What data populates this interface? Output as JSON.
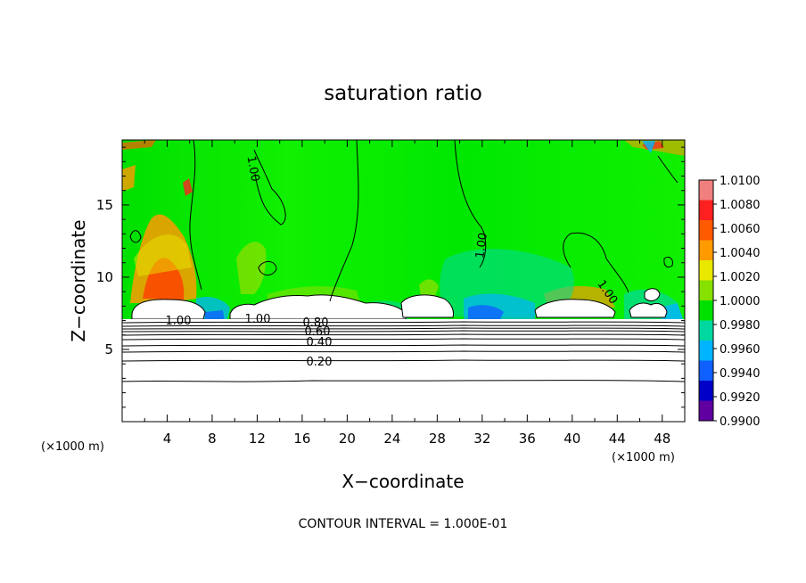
{
  "chart_data": {
    "type": "heatmap",
    "title": "saturation ratio",
    "xlabel": "X−coordinate",
    "ylabel": "Z−coordinate",
    "x_unit_left": "(×1000 m)",
    "x_unit_right": "(×1000 m)",
    "footer": "CONTOUR INTERVAL = 1.000E-01",
    "xlim": [
      0,
      50
    ],
    "ylim": [
      0,
      19.5
    ],
    "x_ticks": [
      "4",
      "8",
      "12",
      "16",
      "20",
      "24",
      "28",
      "32",
      "36",
      "40",
      "44",
      "48"
    ],
    "y_ticks": [
      "5",
      "10",
      "15"
    ],
    "colorbar": {
      "min": 0.99,
      "max": 1.01,
      "labels": [
        "1.0100",
        "1.0080",
        "1.0060",
        "1.0040",
        "1.0020",
        "1.0000",
        "0.9980",
        "0.9960",
        "0.9940",
        "0.9920",
        "0.9900"
      ],
      "colors": [
        "#f08080",
        "#ff2020",
        "#ff5a00",
        "#ff9a00",
        "#e8e800",
        "#86e000",
        "#00e000",
        "#00d8a0",
        "#00b4ff",
        "#1060ff",
        "#0000c8",
        "#6000a0"
      ]
    },
    "contour_labels": [
      "1.00",
      "1.00",
      "1.00",
      "1.00",
      "1.00",
      "0.80",
      "0.60",
      "0.40",
      "0.20"
    ],
    "background_color": "#00f000"
  }
}
